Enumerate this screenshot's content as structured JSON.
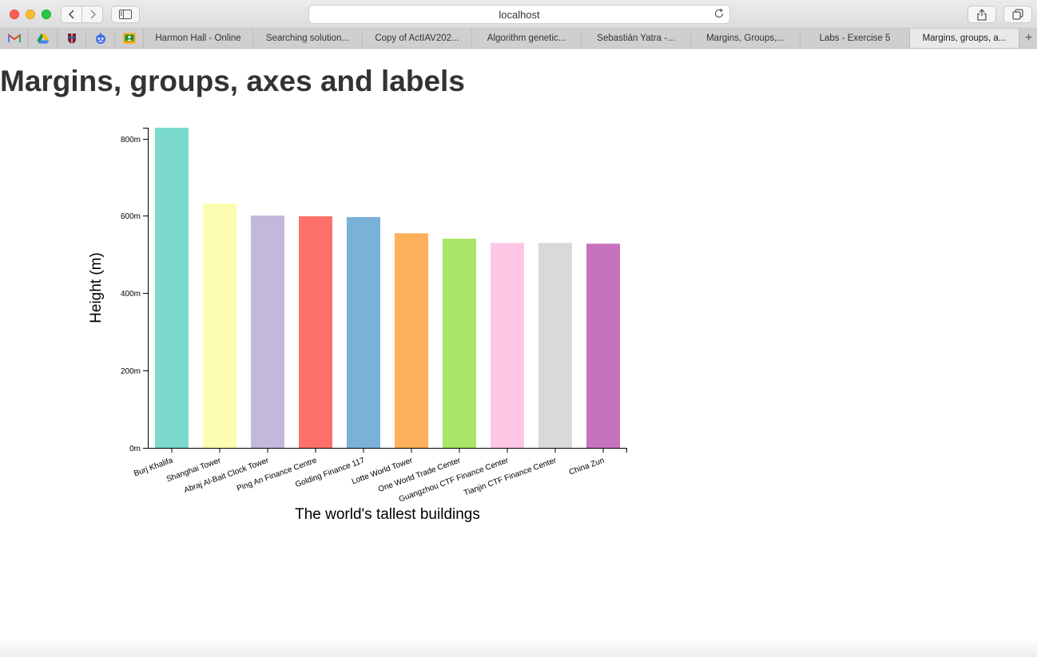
{
  "browser": {
    "address": "localhost",
    "tabs": [
      {
        "label": "Harmon Hall - Online",
        "active": false
      },
      {
        "label": "Searching solution...",
        "active": false
      },
      {
        "label": "Copy of ActIAV202...",
        "active": false
      },
      {
        "label": "Algorithm genetic...",
        "active": false
      },
      {
        "label": "Sebastián Yatra -...",
        "active": false
      },
      {
        "label": "Margins, Groups,...",
        "active": false
      },
      {
        "label": "Labs - Exercise 5",
        "active": false
      },
      {
        "label": "Margins, groups, a...",
        "active": true
      }
    ],
    "favorites": [
      "gmail-icon",
      "google-drive-icon",
      "shield-crest-icon",
      "robot-icon",
      "classroom-icon"
    ]
  },
  "page": {
    "title": "Margins, groups, axes and labels"
  },
  "chart_data": {
    "type": "bar",
    "xlabel": "The world's tallest buildings",
    "ylabel": "Height (m)",
    "ylim": [
      0,
      828
    ],
    "y_ticks": [
      "0m",
      "200m",
      "400m",
      "600m",
      "800m"
    ],
    "y_tick_values": [
      0,
      200,
      400,
      600,
      800
    ],
    "categories": [
      "Burj Khalifa",
      "Shanghai Tower",
      "Abraj Al-Bait Clock Tower",
      "Ping An Finance Centre",
      "Golding Finance 117",
      "Lotte World Tower",
      "One World Trade Center",
      "Guangzhou CTF Finance Center",
      "Tianjin CTF Finance Center",
      "China Zun"
    ],
    "values": [
      828,
      632,
      601,
      599,
      597,
      555,
      541,
      530,
      530,
      528
    ],
    "colors": [
      "#7bdacb",
      "#fbfdb1",
      "#c2b8dc",
      "#fe706a",
      "#7ab1d6",
      "#feb15a",
      "#a7e666",
      "#fdc6e4",
      "#d9d9d9",
      "#c672bd"
    ],
    "grid": false
  }
}
